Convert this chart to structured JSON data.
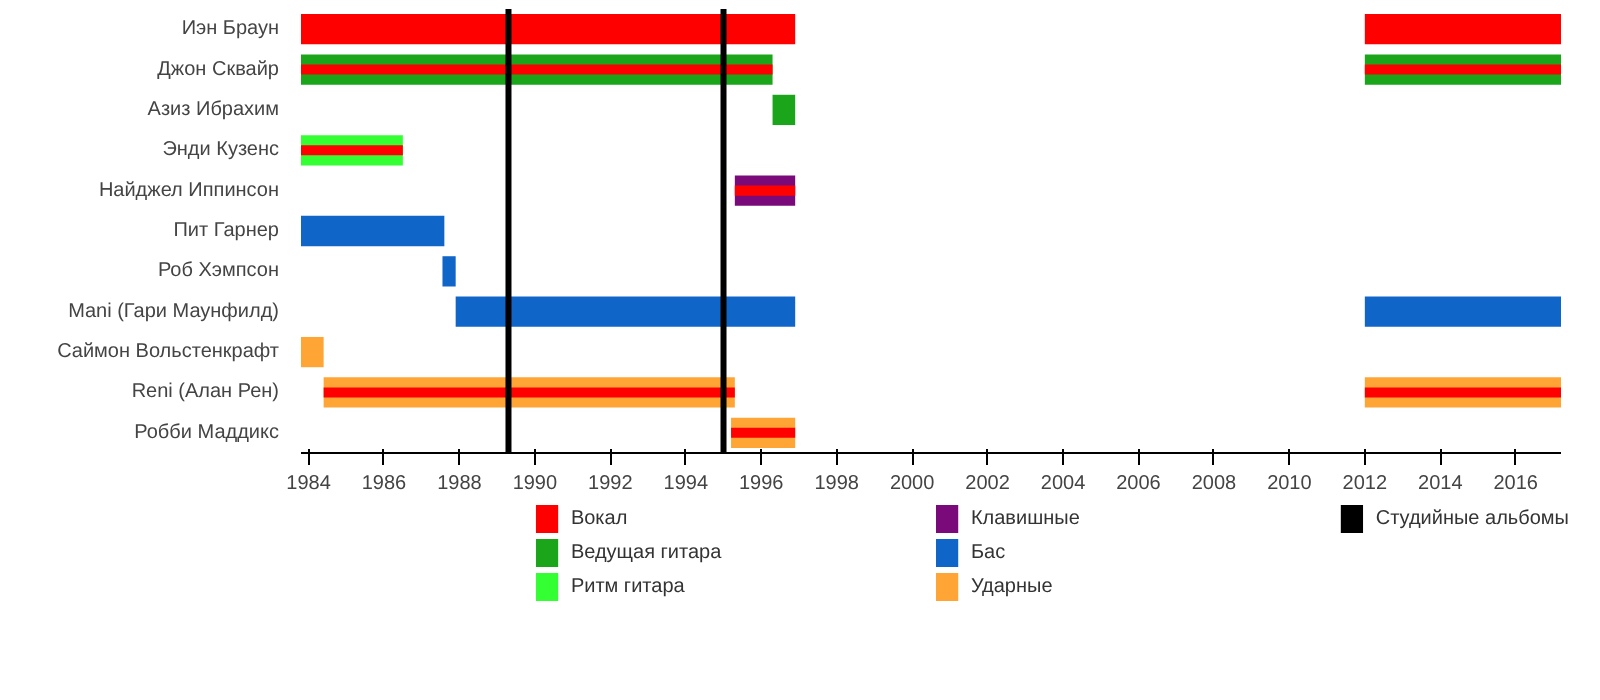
{
  "chart_data": {
    "type": "bar",
    "orientation": "horizontal",
    "categories": [
      "Иэн Браун",
      "Джон Сквайр",
      "Азиз Ибрахим",
      "Энди Кузенс",
      "Найджел Иппинсон",
      "Пит Гарнер",
      "Роб Хэмпсон",
      "Mani (Гари Маунфилд)",
      "Саймон Вольстенкрафт",
      "Reni (Алан Рен)",
      "Робби Маддикс"
    ],
    "series": [
      {
        "name": "Вокал",
        "color": "#ff0000",
        "base": [
          1983.8,
          null,
          null,
          null,
          null,
          null,
          null,
          null,
          null,
          null,
          null
        ],
        "values": [
          13.1,
          null,
          null,
          null,
          null,
          null,
          null,
          null,
          null,
          null,
          null
        ]
      },
      {
        "name": "Ведущая гитара",
        "color": "#1aa51a",
        "base": [
          null,
          1983.8,
          1996.3,
          null,
          null,
          null,
          null,
          null,
          null,
          null,
          null
        ],
        "values": [
          null,
          12.5,
          0.6,
          null,
          null,
          null,
          null,
          null,
          null,
          null,
          null
        ]
      },
      {
        "name": "Ритм гитара",
        "color": "#33ff33",
        "base": [
          null,
          null,
          null,
          1983.8,
          null,
          null,
          null,
          null,
          null,
          null,
          null
        ],
        "values": [
          null,
          null,
          null,
          2.7,
          null,
          null,
          null,
          null,
          null,
          null,
          null
        ]
      },
      {
        "name": "Клавишные",
        "color": "#7a0a7a",
        "base": [
          null,
          null,
          null,
          null,
          1995.3,
          null,
          null,
          null,
          null,
          null,
          null
        ],
        "values": [
          null,
          null,
          null,
          null,
          1.6,
          null,
          null,
          null,
          null,
          null,
          null
        ]
      },
      {
        "name": "Бас",
        "color": "#1066c8",
        "base": [
          null,
          null,
          null,
          null,
          null,
          1983.8,
          1987.55,
          1987.9,
          null,
          null,
          null
        ],
        "values": [
          null,
          null,
          null,
          null,
          null,
          3.8,
          0.35,
          9.0,
          null,
          null,
          null
        ]
      },
      {
        "name": "Ударные",
        "color": "#ffa535",
        "base": [
          null,
          null,
          null,
          null,
          null,
          null,
          null,
          null,
          1983.8,
          1984.4,
          1995.2
        ],
        "values": [
          null,
          null,
          null,
          null,
          null,
          null,
          null,
          null,
          0.6,
          10.9,
          1.7
        ]
      },
      {
        "colors": [
          "#ff0000",
          "#1aa51a",
          null,
          null,
          null,
          null,
          null,
          "#1066c8",
          null,
          "#ffa535",
          null
        ],
        "base": [
          2012.0,
          2012.0,
          null,
          null,
          null,
          null,
          null,
          2012.0,
          null,
          2012.0,
          null
        ],
        "values": [
          5.2,
          5.2,
          null,
          null,
          null,
          null,
          null,
          5.2,
          null,
          5.2,
          null
        ]
      },
      {
        "color": "#ff0000",
        "base": [
          null,
          1983.8,
          null,
          1983.8,
          1995.3,
          null,
          null,
          null,
          null,
          1984.4,
          1995.2
        ],
        "values": [
          null,
          12.5,
          null,
          2.7,
          1.6,
          null,
          null,
          null,
          null,
          10.9,
          1.7
        ]
      },
      {
        "color": "#ff0000",
        "base": [
          null,
          2012.0,
          null,
          null,
          null,
          null,
          null,
          null,
          null,
          2012.0,
          null
        ],
        "values": [
          null,
          5.2,
          null,
          null,
          null,
          null,
          null,
          null,
          null,
          5.2,
          null
        ]
      }
    ],
    "xlim": [
      1983.8,
      2017.2
    ],
    "xticks": [
      1984,
      1986,
      1988,
      1990,
      1992,
      1994,
      1996,
      1998,
      2000,
      2002,
      2004,
      2006,
      2008,
      2010,
      2012,
      2014,
      2016
    ],
    "ref_lines": [
      {
        "axis": "x",
        "value": 1989.3,
        "label": "Студийные альбомы",
        "color": "#000000"
      },
      {
        "axis": "x",
        "value": 1995.0,
        "color": "#000000"
      }
    ],
    "legend": "bottom"
  }
}
